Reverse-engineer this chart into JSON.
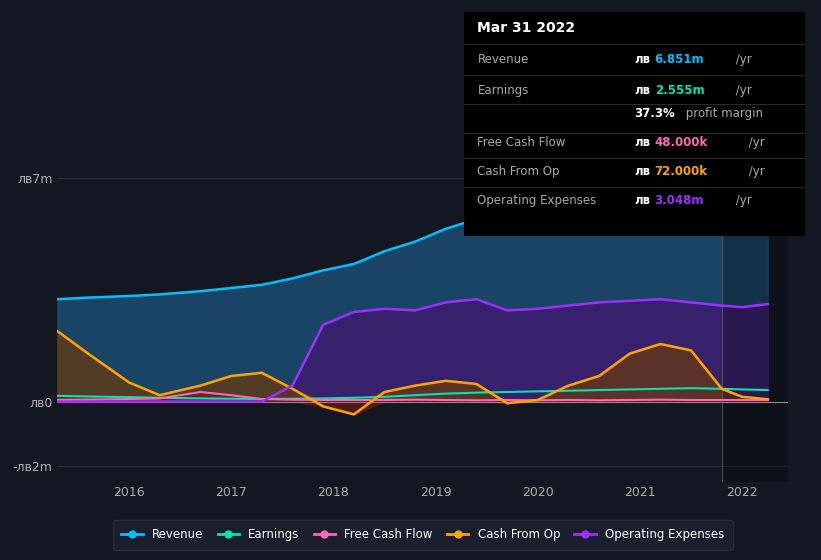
{
  "bg_color": "#131722",
  "plot_bg_color": "#131722",
  "grid_color": "#2a2e39",
  "x_years": [
    2015.3,
    2015.6,
    2016.0,
    2016.3,
    2016.7,
    2017.0,
    2017.3,
    2017.6,
    2017.9,
    2018.2,
    2018.5,
    2018.8,
    2019.1,
    2019.4,
    2019.7,
    2020.0,
    2020.3,
    2020.6,
    2020.9,
    2021.2,
    2021.5,
    2021.8,
    2022.0,
    2022.25
  ],
  "revenue": [
    3.2,
    3.25,
    3.3,
    3.35,
    3.45,
    3.55,
    3.65,
    3.85,
    4.1,
    4.3,
    4.7,
    5.0,
    5.4,
    5.7,
    5.9,
    6.2,
    6.4,
    6.5,
    6.55,
    6.6,
    6.4,
    6.55,
    6.7,
    6.851
  ],
  "earnings": [
    0.18,
    0.16,
    0.14,
    0.12,
    0.1,
    0.09,
    0.08,
    0.09,
    0.1,
    0.12,
    0.15,
    0.2,
    0.25,
    0.28,
    0.3,
    0.32,
    0.34,
    0.36,
    0.38,
    0.4,
    0.42,
    0.4,
    0.38,
    0.36
  ],
  "free_cash_flow": [
    0.05,
    0.06,
    0.08,
    0.1,
    0.3,
    0.2,
    0.08,
    0.06,
    0.05,
    0.05,
    0.05,
    0.06,
    0.05,
    0.04,
    0.05,
    0.04,
    0.05,
    0.04,
    0.05,
    0.06,
    0.05,
    0.05,
    0.048,
    0.048
  ],
  "cash_from_op": [
    2.2,
    1.5,
    0.6,
    0.2,
    0.5,
    0.8,
    0.9,
    0.4,
    -0.15,
    -0.4,
    0.3,
    0.5,
    0.65,
    0.55,
    -0.05,
    0.05,
    0.5,
    0.8,
    1.5,
    1.8,
    1.6,
    0.4,
    0.15,
    0.072
  ],
  "operating_exp": [
    0.0,
    0.0,
    0.0,
    0.0,
    0.0,
    0.0,
    0.0,
    0.5,
    2.4,
    2.8,
    2.9,
    2.85,
    3.1,
    3.2,
    2.85,
    2.9,
    3.0,
    3.1,
    3.15,
    3.2,
    3.1,
    3.0,
    2.95,
    3.048
  ],
  "revenue_color": "#00bfff",
  "earnings_color": "#00e5b0",
  "fcf_color": "#ff69b4",
  "cfo_color": "#ffa500",
  "opex_color": "#9b30ff",
  "revenue_fill": "#1a4a6e",
  "opex_fill": "#3d1a6e",
  "ylim_bottom": -2.5,
  "ylim_top": 8.0,
  "xlim_left": 2015.3,
  "xlim_right": 2022.45,
  "ytick_vals": [
    -2,
    0,
    7
  ],
  "ytick_labels": [
    "-лв2m",
    "лв0",
    "лв7m"
  ],
  "xtick_years": [
    2016,
    2017,
    2018,
    2019,
    2020,
    2021,
    2022
  ],
  "highlight_x": 2021.8,
  "legend_items": [
    "Revenue",
    "Earnings",
    "Free Cash Flow",
    "Cash From Op",
    "Operating Expenses"
  ]
}
